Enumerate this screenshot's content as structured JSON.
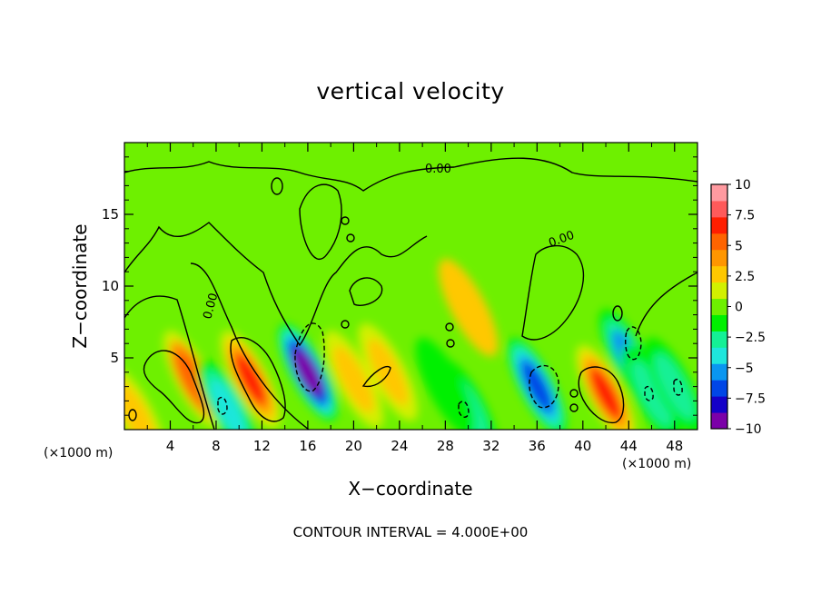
{
  "chart_data": {
    "type": "heatmap",
    "title": "vertical velocity",
    "xlabel": "X−coordinate",
    "ylabel": "Z−coordinate",
    "x_unit_label": "(×1000 m)",
    "contour_interval_text": "CONTOUR INTERVAL = 4.000E+00",
    "contour_label": "0.00",
    "xlim": [
      0,
      50
    ],
    "ylim": [
      0,
      20
    ],
    "x_ticks": [
      4,
      8,
      12,
      16,
      20,
      24,
      28,
      32,
      36,
      40,
      44,
      48
    ],
    "y_ticks": [
      5,
      10,
      15
    ],
    "colorbar": {
      "min": -10,
      "max": 10,
      "tick_labels": [
        "10",
        "7.5",
        "5",
        "2.5",
        "0",
        "−2.5",
        "−5",
        "−7.5",
        "−10"
      ],
      "tick_values": [
        10,
        7.5,
        5,
        2.5,
        0,
        -2.5,
        -5,
        -7.5,
        -10
      ],
      "colors": [
        "#7b00a8",
        "#1400c8",
        "#0046e6",
        "#0a96f0",
        "#1ee6dc",
        "#14f096",
        "#00f000",
        "#6ef000",
        "#d2f000",
        "#ffc800",
        "#ff9600",
        "#ff6400",
        "#ff1e00",
        "#ff5a5a",
        "#ff9aa0"
      ]
    },
    "features": [
      {
        "kind": "updraft",
        "x": 1,
        "z": 1.0,
        "value": 3
      },
      {
        "kind": "updraft",
        "x": 6,
        "z": 3.5,
        "value": 5
      },
      {
        "kind": "updraft",
        "x": 11,
        "z": 3.5,
        "value": 6
      },
      {
        "kind": "updraft",
        "x": 20,
        "z": 3.5,
        "value": 3
      },
      {
        "kind": "updraft",
        "x": 23,
        "z": 4.0,
        "value": 3
      },
      {
        "kind": "updraft",
        "x": 42,
        "z": 2.5,
        "value": 6
      },
      {
        "kind": "updraft",
        "x": 30,
        "z": 8.5,
        "value": 2
      },
      {
        "kind": "downdraft",
        "x": 16,
        "z": 4.0,
        "value": -10
      },
      {
        "kind": "downdraft",
        "x": 36,
        "z": 3.0,
        "value": -7
      },
      {
        "kind": "downdraft",
        "x": 44,
        "z": 5.0,
        "value": -5
      },
      {
        "kind": "downdraft",
        "x": 9,
        "z": 1.5,
        "value": -4
      },
      {
        "kind": "downdraft",
        "x": 30,
        "z": 1.5,
        "value": -3
      },
      {
        "kind": "downdraft",
        "x": 46,
        "z": 2.5,
        "value": -3
      },
      {
        "kind": "downdraft",
        "x": 48,
        "z": 3.0,
        "value": -3
      },
      {
        "kind": "downdraft",
        "x": 28,
        "z": 3.0,
        "value": -2
      }
    ]
  }
}
